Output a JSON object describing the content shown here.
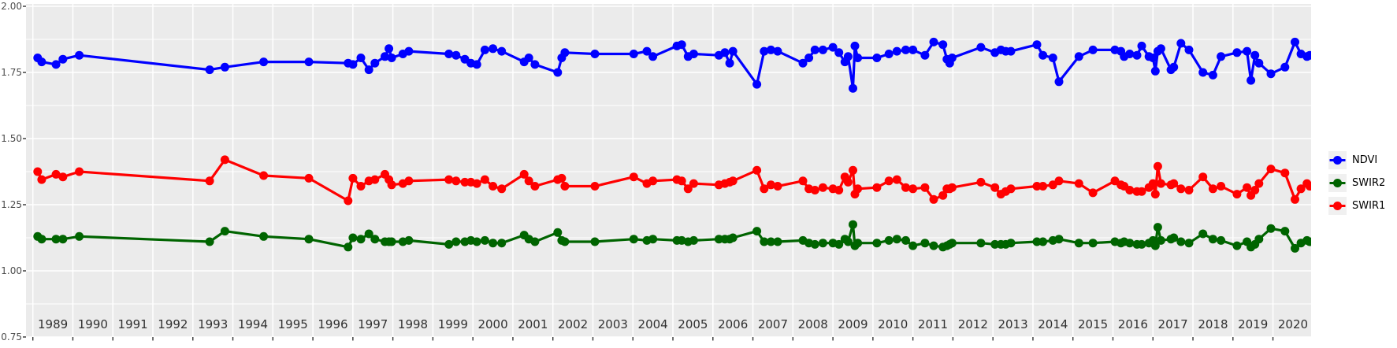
{
  "chart_data": {
    "type": "line",
    "title": "",
    "xlabel": "",
    "ylabel": "",
    "legend_position": "right",
    "grid": true,
    "panel_bg": "#ebebeb",
    "grid_color": "#ffffff",
    "axis_text_color": "#4d4d4d",
    "year_label_color": "#303030",
    "tick_color": "#333333",
    "legend_key_bg": "#f0f0f0",
    "x": [
      1989.12,
      1989.22,
      1989.58,
      1989.75,
      1990.16,
      1993.42,
      1993.8,
      1994.77,
      1995.9,
      1996.88,
      1997.0,
      1997.2,
      1997.4,
      1997.55,
      1997.8,
      1997.9,
      1997.97,
      1998.25,
      1998.4,
      1999.4,
      1999.58,
      1999.8,
      1999.95,
      2000.1,
      2000.3,
      2000.5,
      2000.72,
      2001.28,
      2001.4,
      2001.55,
      2002.12,
      2002.22,
      2002.3,
      2003.05,
      2004.02,
      2004.35,
      2004.5,
      2005.1,
      2005.22,
      2005.38,
      2005.52,
      2006.15,
      2006.3,
      2006.42,
      2006.5,
      2007.1,
      2007.28,
      2007.45,
      2007.62,
      2008.25,
      2008.4,
      2008.55,
      2008.75,
      2009.0,
      2009.15,
      2009.3,
      2009.38,
      2009.5,
      2009.55,
      2009.62,
      2010.1,
      2010.4,
      2010.6,
      2010.82,
      2011.0,
      2011.3,
      2011.52,
      2011.75,
      2011.85,
      2011.92,
      2011.98,
      2012.7,
      2013.05,
      2013.2,
      2013.32,
      2013.45,
      2014.1,
      2014.25,
      2014.5,
      2014.65,
      2015.15,
      2015.5,
      2016.05,
      2016.2,
      2016.28,
      2016.42,
      2016.6,
      2016.72,
      2016.9,
      2017.0,
      2017.06,
      2017.12,
      2017.2,
      2017.45,
      2017.52,
      2017.7,
      2017.9,
      2018.25,
      2018.5,
      2018.7,
      2019.1,
      2019.35,
      2019.45,
      2019.55,
      2019.65,
      2019.95,
      2020.3,
      2020.55,
      2020.7,
      2020.85,
      2020.92
    ],
    "series": [
      {
        "name": "NDVI",
        "color": "#0000ff",
        "values": [
          1.805,
          1.79,
          1.78,
          1.8,
          1.815,
          1.76,
          1.77,
          1.79,
          1.79,
          1.785,
          1.78,
          1.805,
          1.76,
          1.785,
          1.81,
          1.84,
          1.805,
          1.82,
          1.83,
          1.82,
          1.815,
          1.8,
          1.785,
          1.78,
          1.835,
          1.84,
          1.83,
          1.79,
          1.805,
          1.78,
          1.75,
          1.805,
          1.825,
          1.82,
          1.82,
          1.83,
          1.81,
          1.85,
          1.855,
          1.81,
          1.82,
          1.815,
          1.825,
          1.785,
          1.83,
          1.705,
          1.83,
          1.835,
          1.83,
          1.785,
          1.805,
          1.835,
          1.835,
          1.845,
          1.825,
          1.79,
          1.81,
          1.69,
          1.85,
          1.805,
          1.805,
          1.82,
          1.83,
          1.835,
          1.835,
          1.815,
          1.865,
          1.855,
          1.8,
          1.785,
          1.805,
          1.845,
          1.825,
          1.835,
          1.83,
          1.83,
          1.855,
          1.815,
          1.805,
          1.715,
          1.81,
          1.835,
          1.835,
          1.83,
          1.81,
          1.82,
          1.815,
          1.85,
          1.81,
          1.805,
          1.755,
          1.83,
          1.84,
          1.76,
          1.77,
          1.86,
          1.835,
          1.75,
          1.74,
          1.81,
          1.825,
          1.83,
          1.72,
          1.815,
          1.785,
          1.745,
          1.77,
          1.865,
          1.82,
          1.81,
          1.815
        ]
      },
      {
        "name": "SWIR2",
        "color": "#006400",
        "values": [
          1.13,
          1.12,
          1.12,
          1.12,
          1.13,
          1.11,
          1.15,
          1.13,
          1.12,
          1.09,
          1.125,
          1.12,
          1.14,
          1.12,
          1.11,
          1.11,
          1.11,
          1.11,
          1.115,
          1.1,
          1.11,
          1.11,
          1.115,
          1.11,
          1.115,
          1.105,
          1.105,
          1.135,
          1.12,
          1.11,
          1.145,
          1.115,
          1.11,
          1.11,
          1.12,
          1.115,
          1.12,
          1.115,
          1.115,
          1.11,
          1.115,
          1.12,
          1.12,
          1.12,
          1.125,
          1.15,
          1.11,
          1.11,
          1.11,
          1.115,
          1.105,
          1.1,
          1.105,
          1.105,
          1.1,
          1.12,
          1.11,
          1.175,
          1.095,
          1.105,
          1.105,
          1.115,
          1.12,
          1.115,
          1.095,
          1.105,
          1.095,
          1.09,
          1.095,
          1.1,
          1.105,
          1.105,
          1.1,
          1.1,
          1.1,
          1.105,
          1.11,
          1.11,
          1.115,
          1.12,
          1.105,
          1.105,
          1.11,
          1.105,
          1.11,
          1.105,
          1.1,
          1.1,
          1.105,
          1.115,
          1.095,
          1.165,
          1.115,
          1.12,
          1.125,
          1.11,
          1.105,
          1.14,
          1.12,
          1.115,
          1.095,
          1.11,
          1.09,
          1.1,
          1.12,
          1.16,
          1.15,
          1.085,
          1.105,
          1.115,
          1.11
        ]
      },
      {
        "name": "SWIR1",
        "color": "#ff0000",
        "values": [
          1.375,
          1.345,
          1.365,
          1.355,
          1.375,
          1.34,
          1.42,
          1.36,
          1.35,
          1.265,
          1.35,
          1.32,
          1.34,
          1.345,
          1.365,
          1.345,
          1.325,
          1.33,
          1.34,
          1.345,
          1.34,
          1.335,
          1.335,
          1.33,
          1.345,
          1.32,
          1.31,
          1.365,
          1.34,
          1.32,
          1.345,
          1.35,
          1.32,
          1.32,
          1.355,
          1.33,
          1.34,
          1.345,
          1.34,
          1.31,
          1.33,
          1.325,
          1.33,
          1.335,
          1.34,
          1.38,
          1.31,
          1.325,
          1.32,
          1.34,
          1.31,
          1.305,
          1.315,
          1.31,
          1.305,
          1.355,
          1.335,
          1.38,
          1.29,
          1.31,
          1.315,
          1.34,
          1.345,
          1.315,
          1.31,
          1.315,
          1.27,
          1.285,
          1.31,
          1.31,
          1.315,
          1.335,
          1.315,
          1.29,
          1.3,
          1.31,
          1.32,
          1.32,
          1.325,
          1.34,
          1.33,
          1.295,
          1.34,
          1.325,
          1.32,
          1.305,
          1.3,
          1.3,
          1.315,
          1.33,
          1.29,
          1.395,
          1.33,
          1.325,
          1.33,
          1.31,
          1.305,
          1.355,
          1.31,
          1.32,
          1.29,
          1.315,
          1.285,
          1.305,
          1.33,
          1.385,
          1.37,
          1.27,
          1.31,
          1.33,
          1.32
        ]
      }
    ],
    "y_axis": {
      "tick_labels": [
        "2.00",
        "1.75",
        "1.50",
        "1.25",
        "1.00",
        "0.75"
      ],
      "tick_values": [
        2.0,
        1.75,
        1.5,
        1.25,
        1.0,
        0.75
      ],
      "minor_values": [
        1.875,
        1.625,
        1.375,
        1.125,
        0.875
      ],
      "range": [
        0.75,
        2.01
      ]
    },
    "x_axis": {
      "year_labels": [
        "1989",
        "1990",
        "1991",
        "1992",
        "1993",
        "1994",
        "1995",
        "1996",
        "1997",
        "1998",
        "1999",
        "2000",
        "2001",
        "2002",
        "2003",
        "2004",
        "2005",
        "2006",
        "2007",
        "2008",
        "2009",
        "2010",
        "2011",
        "2012",
        "2013",
        "2014",
        "2015",
        "2016",
        "2017",
        "2018",
        "2019",
        "2020"
      ],
      "range": [
        1988.83,
        2020.95
      ]
    }
  }
}
